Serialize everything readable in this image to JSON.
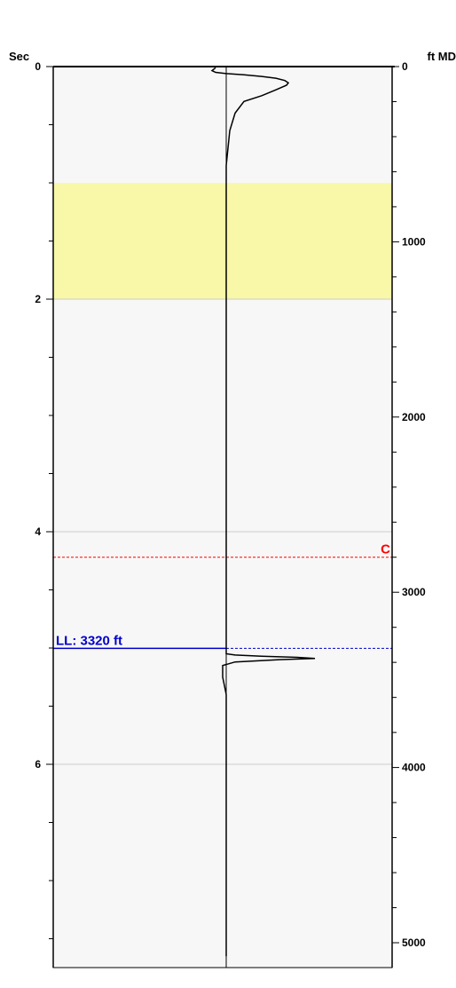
{
  "chart_data": {
    "type": "line",
    "left_axis": {
      "title": "Sec",
      "ticks": [
        0,
        2,
        4,
        6
      ],
      "range": [
        0,
        7.65
      ]
    },
    "right_axis": {
      "title": "ft MD",
      "ticks": [
        0,
        1000,
        2000,
        3000,
        4000,
        5000
      ],
      "range": [
        0,
        5150
      ]
    },
    "bands": [
      {
        "from_sec": 1.0,
        "to_sec": 2.0,
        "color": "#f8f8a8"
      }
    ],
    "gridlines_sec": [
      2,
      4,
      6
    ],
    "markers": [
      {
        "label": "C",
        "depth_ft": 2800,
        "color": "#ff0000",
        "style": "dashed",
        "label_side": "right"
      },
      {
        "label": "LL: 3320 ft",
        "depth_ft": 3320,
        "color": "#0000cc",
        "style": "mixed",
        "label_side": "left"
      }
    ],
    "baseline_sec": 0,
    "curve": {
      "color": "#000000",
      "points": [
        [
          -0.06,
          0.01
        ],
        [
          -0.08,
          0.035
        ],
        [
          -0.06,
          0.05
        ],
        [
          0.0,
          0.06
        ],
        [
          0.1,
          0.07
        ],
        [
          0.2,
          0.085
        ],
        [
          0.28,
          0.1
        ],
        [
          0.33,
          0.12
        ],
        [
          0.35,
          0.14
        ],
        [
          0.34,
          0.16
        ],
        [
          0.28,
          0.2
        ],
        [
          0.2,
          0.25
        ],
        [
          0.1,
          0.3
        ],
        [
          0.05,
          0.4
        ],
        [
          0.02,
          0.55
        ],
        [
          0.01,
          0.7
        ],
        [
          0.0,
          0.85
        ],
        [
          0.0,
          1.0
        ],
        [
          0.0,
          1.5
        ],
        [
          0.0,
          2.0
        ],
        [
          0.0,
          3.0
        ],
        [
          0.0,
          4.0
        ],
        [
          0.0,
          4.5
        ],
        [
          0.0,
          5.0
        ],
        [
          0.0,
          5.05
        ],
        [
          0.05,
          5.06
        ],
        [
          0.2,
          5.07
        ],
        [
          0.4,
          5.08
        ],
        [
          0.5,
          5.09
        ],
        [
          0.3,
          5.1
        ],
        [
          0.05,
          5.12
        ],
        [
          -0.02,
          5.15
        ],
        [
          -0.02,
          5.25
        ],
        [
          0.0,
          5.4
        ],
        [
          0.0,
          6.0
        ],
        [
          0.0,
          7.0
        ],
        [
          0.0,
          7.65
        ]
      ]
    }
  }
}
